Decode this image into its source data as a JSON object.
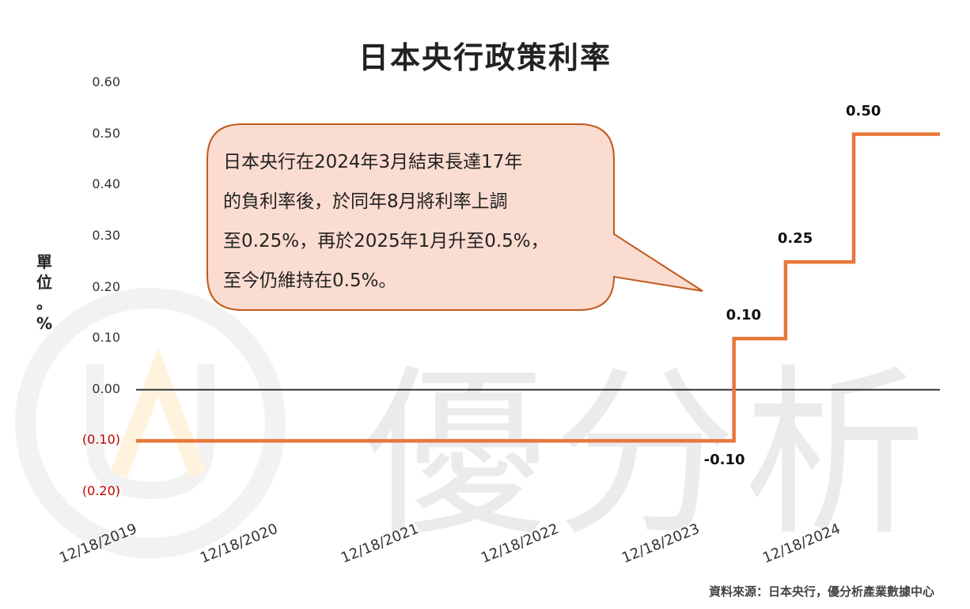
{
  "chart_data": {
    "type": "line",
    "title": "日本央行政策利率",
    "ylabel": [
      "單",
      "位",
      "。",
      "%"
    ],
    "ylim": [
      -0.2,
      0.6
    ],
    "yticks": [
      {
        "value": 0.6,
        "label": "0.60"
      },
      {
        "value": 0.5,
        "label": "0.50"
      },
      {
        "value": 0.4,
        "label": "0.40"
      },
      {
        "value": 0.3,
        "label": "0.30"
      },
      {
        "value": 0.2,
        "label": "0.20"
      },
      {
        "value": 0.1,
        "label": "0.10"
      },
      {
        "value": 0.0,
        "label": "0.00"
      },
      {
        "value": -0.1,
        "label": "(0.10)"
      },
      {
        "value": -0.2,
        "label": "(0.20)"
      }
    ],
    "xticks": [
      "12/18/2019",
      "12/18/2020",
      "12/18/2021",
      "12/18/2022",
      "12/18/2023",
      "12/18/2024"
    ],
    "series": [
      {
        "step": "post",
        "color": "#e8773a",
        "points": [
          {
            "x": "2019-12-18",
            "y": -0.1
          },
          {
            "x": "2024-03-19",
            "y": 0.1
          },
          {
            "x": "2024-07-31",
            "y": 0.25
          },
          {
            "x": "2025-01-24",
            "y": 0.5
          },
          {
            "x": "2025-08-01",
            "y": 0.5
          }
        ]
      }
    ],
    "data_labels": [
      {
        "x": "2024-03-19",
        "y": -0.1,
        "text": "-0.10"
      },
      {
        "x": "2024-03-19",
        "y": 0.1,
        "text": "0.10"
      },
      {
        "x": "2024-07-31",
        "y": 0.25,
        "text": "0.25"
      },
      {
        "x": "2025-01-24",
        "y": 0.5,
        "text": "0.50"
      }
    ],
    "grid": false
  },
  "annotation": {
    "lines": [
      "日本央行在2024年3月結束長達17年",
      "的負利率後，於同年8月將利率上調",
      "至0.25%，再於2025年1月升至0.5%，",
      "至今仍維持在0.5%。"
    ],
    "fill": "#fbdcd0",
    "stroke": "#c05a1e"
  },
  "watermark": {
    "text": "優分析",
    "color": "#ebebeb",
    "logo_accent": "#fff3de"
  },
  "source": "資料來源：日本央行，優分析產業數據中心"
}
